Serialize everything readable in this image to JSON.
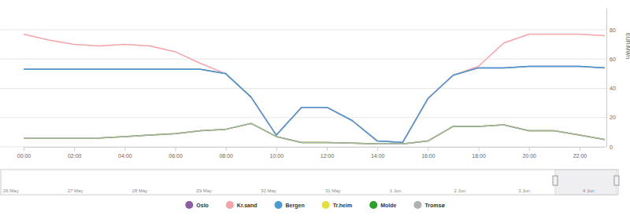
{
  "chart_data": {
    "type": "line",
    "categories": [
      "00:00",
      null,
      "02:00",
      null,
      "04:00",
      null,
      "06:00",
      null,
      "08:00",
      null,
      "10:00",
      null,
      "12:00",
      null,
      "14:00",
      null,
      "16:00",
      null,
      "18:00",
      null,
      "20:00",
      null,
      "22:00",
      null
    ],
    "series": [
      {
        "name": "Oslo",
        "color": "#8e5ea2",
        "values": [
          53,
          53,
          53,
          53,
          53,
          53,
          53,
          53,
          50,
          34,
          8,
          27,
          27,
          18,
          4,
          3,
          33,
          49,
          54,
          54,
          55,
          55,
          55,
          54
        ]
      },
      {
        "name": "Kr.sand",
        "color": "#f4a3a8",
        "values": [
          77,
          73,
          70,
          69,
          70,
          69,
          65,
          57,
          50,
          34,
          8,
          27,
          27,
          18,
          4,
          3,
          33,
          49,
          55,
          71,
          77,
          77,
          77,
          76
        ]
      },
      {
        "name": "Bergen",
        "color": "#4a9bd1",
        "values": [
          53,
          53,
          53,
          53,
          53,
          53,
          53,
          53,
          50,
          34,
          8,
          27,
          27,
          18,
          4,
          3,
          33,
          49,
          54,
          54,
          55,
          55,
          55,
          54
        ]
      },
      {
        "name": "Tr.heim",
        "color": "#e3df3c",
        "values": [
          6,
          6,
          6,
          6,
          7,
          8,
          9,
          11,
          12,
          16,
          7,
          3,
          3,
          2.5,
          2,
          2,
          4,
          14,
          14,
          15,
          11,
          11,
          8,
          5
        ]
      },
      {
        "name": "Molde",
        "color": "#2ca02c",
        "values": [
          6,
          6,
          6,
          6,
          7,
          8,
          9,
          11,
          12,
          16,
          7,
          3,
          3,
          2.5,
          2,
          2,
          4,
          14,
          14,
          15,
          11,
          11,
          8,
          5
        ]
      },
      {
        "name": "Tromsø",
        "color": "#b0b0b0",
        "values": [
          6,
          6,
          6,
          6,
          7,
          8,
          9,
          11,
          12,
          16,
          7,
          3,
          3,
          2.5,
          2,
          2,
          4,
          14,
          14,
          15,
          11,
          11,
          8,
          5
        ]
      }
    ],
    "ylim": [
      0,
      95
    ],
    "yticks": [
      0,
      20,
      40,
      60,
      80
    ],
    "ylabel": "EUR/MWh",
    "grid": true,
    "legend": "bottom",
    "navigator_dates": [
      "26 May",
      "27 May",
      "28 May",
      "29 May",
      "30 May",
      "31 May",
      "1 Jun",
      "2 Jun",
      "3 Jun",
      "4 Jun"
    ]
  }
}
